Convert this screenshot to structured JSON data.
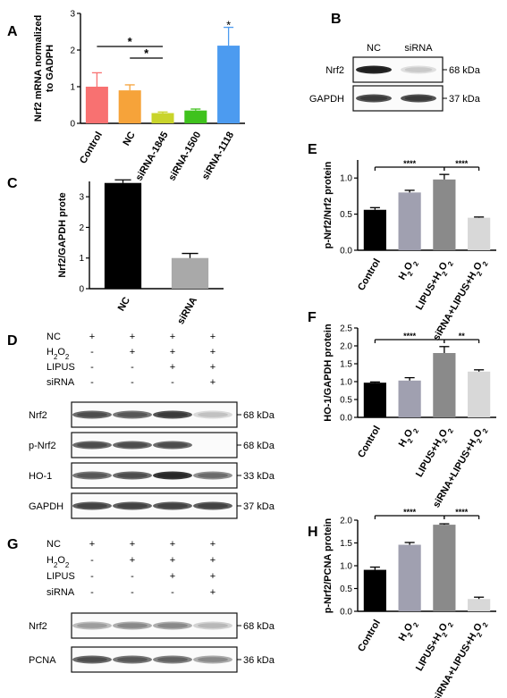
{
  "panels": {
    "A": {
      "letter": "A",
      "chart_data": {
        "type": "bar",
        "ylabel": "Nrf2 mRNA normalized to GADPH",
        "ylim": [
          0,
          3
        ],
        "yticks": [
          "0",
          "1",
          "2",
          "3"
        ],
        "categories": [
          "Control",
          "NC",
          "siRNA-1845",
          "siRNA-1500",
          "siRNA-1118"
        ],
        "values": [
          1.0,
          0.9,
          0.28,
          0.35,
          2.12
        ],
        "errors": [
          0.38,
          0.15,
          0.03,
          0.04,
          0.5
        ],
        "colors": [
          "#f87171",
          "#f6a33a",
          "#c9d42b",
          "#3fc21d",
          "#4c9bf0"
        ],
        "significance": [
          {
            "from": 0,
            "to": 2,
            "label": "*"
          },
          {
            "from": 1,
            "to": 2,
            "label": "*"
          },
          {
            "on": 4,
            "label": "*"
          }
        ]
      }
    },
    "B": {
      "letter": "B",
      "lanes": [
        "NC",
        "siRNA"
      ],
      "rows": [
        {
          "label": "Nrf2",
          "kda": "68 kDa",
          "bands": [
            1.0,
            0.1
          ]
        },
        {
          "label": "GAPDH",
          "kda": "37 kDa",
          "bands": [
            0.85,
            0.85
          ]
        }
      ]
    },
    "C": {
      "letter": "C",
      "chart_data": {
        "type": "bar",
        "ylabel": "Nrf2/GAPDH prote",
        "ylim": [
          0,
          3.5
        ],
        "yticks": [
          "0",
          "1",
          "2",
          "3"
        ],
        "categories": [
          "NC",
          "siRNA"
        ],
        "values": [
          3.45,
          1.0
        ],
        "errors": [
          0.1,
          0.15
        ],
        "colors": [
          "#000000",
          "#a9a9a9"
        ]
      }
    },
    "D": {
      "letter": "D",
      "conditions": [
        {
          "name": "NC",
          "signs": [
            "+",
            "+",
            "+",
            "+"
          ]
        },
        {
          "name": "H2O2",
          "signs": [
            "-",
            "+",
            "+",
            "+"
          ]
        },
        {
          "name": "LIPUS",
          "signs": [
            "-",
            "-",
            "+",
            "+"
          ]
        },
        {
          "name": "siRNA",
          "signs": [
            "-",
            "-",
            "-",
            "+"
          ]
        }
      ],
      "rows": [
        {
          "label": "Nrf2",
          "kda": "68 kDa",
          "bands": [
            0.75,
            0.7,
            0.85,
            0.15
          ]
        },
        {
          "label": "p-Nrf2",
          "kda": "68 kDa",
          "bands": [
            0.75,
            0.75,
            0.75,
            0.0
          ]
        },
        {
          "label": "HO-1",
          "kda": "33 kDa",
          "bands": [
            0.7,
            0.75,
            0.95,
            0.6
          ]
        },
        {
          "label": "GAPDH",
          "kda": "37 kDa",
          "bands": [
            0.8,
            0.8,
            0.8,
            0.8
          ]
        }
      ]
    },
    "E": {
      "letter": "E",
      "chart_data": {
        "type": "bar",
        "ylabel": "p-Nrf2/Nrf2 protein",
        "ylim": [
          0,
          1.25
        ],
        "yticks": [
          "0.0",
          "0.5",
          "1.0"
        ],
        "categories": [
          "Control",
          "H2O2",
          "LIPUS+H2O2",
          "siRNA+LIPUS+H2O2"
        ],
        "values": [
          0.56,
          0.8,
          0.98,
          0.45
        ],
        "errors": [
          0.03,
          0.03,
          0.07,
          0.01
        ],
        "colors": [
          "#000000",
          "#a0a0b0",
          "#8a8a8a",
          "#d8d8d8"
        ],
        "significance": [
          {
            "from": 0,
            "to": 2,
            "label": "****"
          },
          {
            "from": 2,
            "to": 3,
            "label": "****"
          }
        ]
      }
    },
    "F": {
      "letter": "F",
      "chart_data": {
        "type": "bar",
        "ylabel": "HO-1/GAPDH protein",
        "ylim": [
          0,
          2.5
        ],
        "yticks": [
          "0.0",
          "0.5",
          "1.0",
          "1.5",
          "2.0",
          "2.5"
        ],
        "categories": [
          "Control",
          "H2O2",
          "LIPUS+H2O2",
          "siRNA+LIPUS+H2O2"
        ],
        "values": [
          0.97,
          1.03,
          1.8,
          1.28
        ],
        "errors": [
          0.02,
          0.08,
          0.18,
          0.05
        ],
        "colors": [
          "#000000",
          "#a0a0b0",
          "#8a8a8a",
          "#d8d8d8"
        ],
        "significance": [
          {
            "from": 0,
            "to": 2,
            "label": "****"
          },
          {
            "from": 2,
            "to": 3,
            "label": "**"
          }
        ]
      }
    },
    "G": {
      "letter": "G",
      "conditions": [
        {
          "name": "NC",
          "signs": [
            "+",
            "+",
            "+",
            "+"
          ]
        },
        {
          "name": "H2O2",
          "signs": [
            "-",
            "+",
            "+",
            "+"
          ]
        },
        {
          "name": "LIPUS",
          "signs": [
            "-",
            "-",
            "+",
            "+"
          ]
        },
        {
          "name": "siRNA",
          "signs": [
            "-",
            "-",
            "-",
            "+"
          ]
        }
      ],
      "rows": [
        {
          "label": "Nrf2",
          "kda": "68 kDa",
          "bands": [
            0.35,
            0.45,
            0.45,
            0.2
          ]
        },
        {
          "label": "PCNA",
          "kda": "36 kDa",
          "bands": [
            0.75,
            0.7,
            0.65,
            0.45
          ]
        }
      ]
    },
    "H": {
      "letter": "H",
      "chart_data": {
        "type": "bar",
        "ylabel": "p-Nrf2/PCNA protein",
        "ylim": [
          0,
          2.0
        ],
        "yticks": [
          "0.0",
          "0.5",
          "1.0",
          "1.5",
          "2.0"
        ],
        "categories": [
          "Control",
          "H2O2",
          "LIPUS+H2O2",
          "siRNA+LIPUS+H2O2"
        ],
        "values": [
          0.91,
          1.46,
          1.9,
          0.27
        ],
        "errors": [
          0.06,
          0.05,
          0.02,
          0.04
        ],
        "colors": [
          "#000000",
          "#a0a0b0",
          "#8a8a8a",
          "#d8d8d8"
        ],
        "significance": [
          {
            "from": 0,
            "to": 2,
            "label": "****"
          },
          {
            "from": 2,
            "to": 3,
            "label": "****"
          }
        ]
      }
    }
  }
}
